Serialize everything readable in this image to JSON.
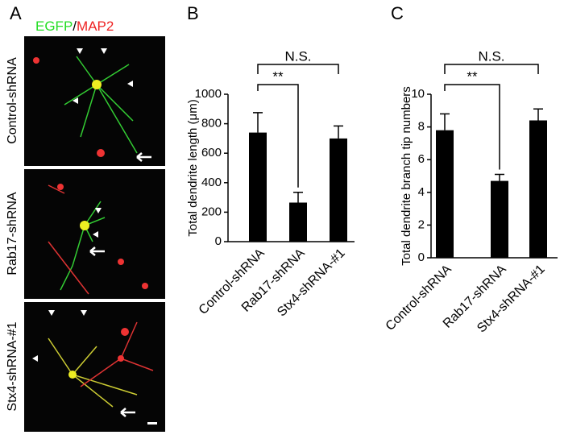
{
  "panel_a": {
    "label": "A",
    "stain_1": "EGFP",
    "separator": "/",
    "stain_2": "MAP2",
    "rows": [
      "Control-shRNA",
      "Rab17-shRNA",
      "Stx4-shRNA-#1"
    ]
  },
  "chart_data": [
    {
      "type": "bar",
      "panel": "B",
      "ylabel": "Total dendrite length (μm)",
      "categories": [
        "Control-shRNA",
        "Rab17-shRNA",
        "Stx4-shRNA-#1"
      ],
      "values": [
        740,
        265,
        700
      ],
      "errors": [
        135,
        70,
        85
      ],
      "color": "#000000",
      "ylim": [
        0,
        1000
      ],
      "yticks": [
        0,
        200,
        400,
        600,
        800,
        1000
      ],
      "annotations": [
        "N.S.",
        "**"
      ]
    },
    {
      "type": "bar",
      "panel": "C",
      "ylabel": "Total dendrite branch tip numbers",
      "categories": [
        "Control-shRNA",
        "Rab17-shRNA",
        "Stx4-shRNA-#1"
      ],
      "values": [
        7.8,
        4.7,
        8.4
      ],
      "errors": [
        1.0,
        0.4,
        0.7
      ],
      "color": "#000000",
      "ylim": [
        0,
        10
      ],
      "yticks": [
        0,
        2,
        4,
        6,
        8,
        10
      ],
      "annotations": [
        "N.S.",
        "**"
      ]
    }
  ]
}
